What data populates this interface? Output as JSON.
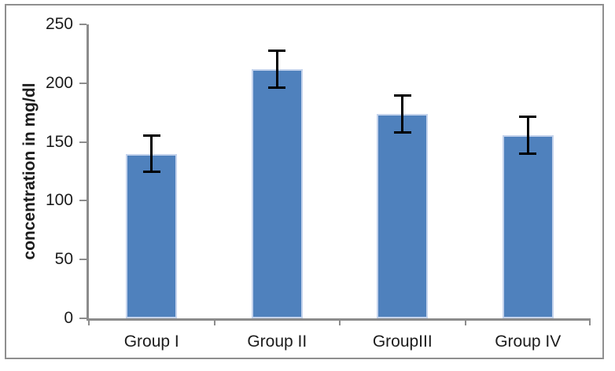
{
  "chart_data": {
    "type": "bar",
    "title": "",
    "xlabel": "",
    "ylabel": "concentration in mg/dl",
    "categories": [
      "Group I",
      "Group II",
      "GroupIII",
      "Group IV"
    ],
    "values": [
      140,
      212,
      174,
      156
    ],
    "error_bars": [
      16,
      16,
      16,
      16
    ],
    "ylim": [
      0,
      250
    ],
    "ytick_step": 50,
    "ytick_labels": [
      "0",
      "50",
      "100",
      "150",
      "200",
      "250"
    ],
    "grid": false,
    "legend": "none",
    "colors": {
      "bar_fill": "#4f81bd",
      "bar_border": "#c4d3ec",
      "error_bar": "#000000",
      "axis": "#8c8c8c",
      "text": "#1c1c1c",
      "chart_border": "#8f8f8f",
      "background": "#ffffff"
    }
  }
}
